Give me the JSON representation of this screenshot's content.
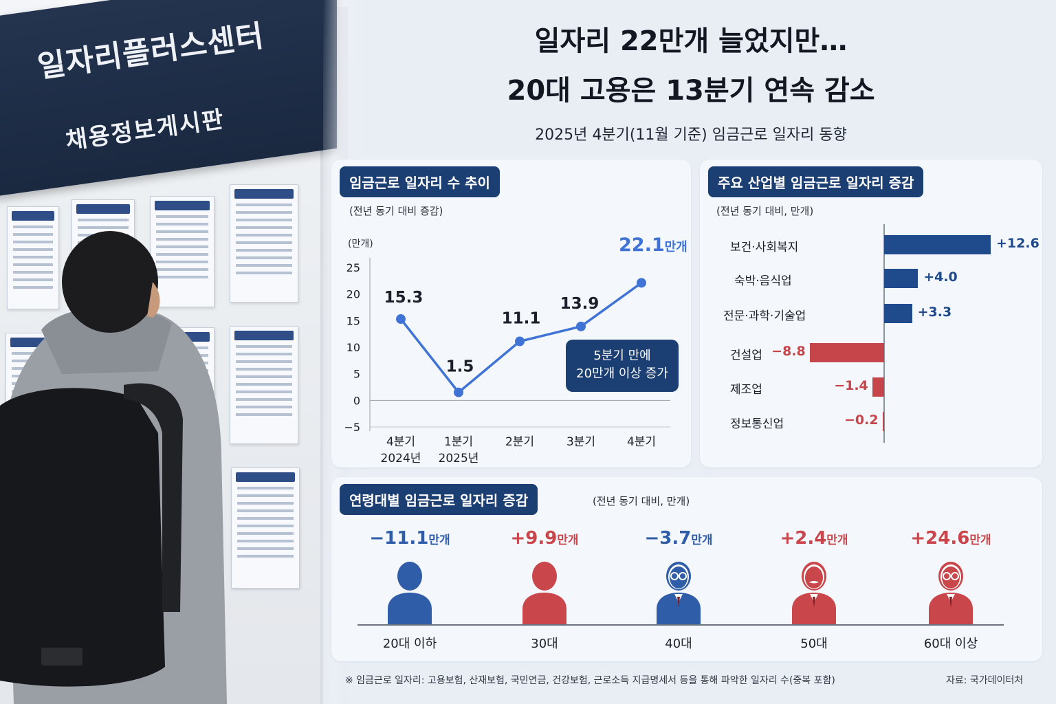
{
  "photo": {
    "sign_line1": "일자리플러스센터",
    "sign_line2": "채용정보게시판"
  },
  "header": {
    "title_line1": "일자리 22만개 늘었지만…",
    "title_line2": "20대 고용은 13분기 연속 감소",
    "subtitle": "2025년 4분기(11월 기준) 임금근로 일자리 동향"
  },
  "line_panel": {
    "title": "임금근로 일자리 수 추이",
    "note": "(전년 동기 대비 증감)",
    "unit": "(만개)",
    "callout_line1": "5분기 만에",
    "callout_line2": "20만개 이상 증가",
    "last_suffix": "만개"
  },
  "industry_panel": {
    "title": "주요 산업별 임금근로 일자리 증감",
    "note": "(전년 동기 대비, 만개)"
  },
  "age_panel": {
    "title": "연령대별 임금근로 일자리 증감",
    "note": "(전년 동기 대비, 만개)",
    "suffix": "만개"
  },
  "colors": {
    "navy": "#1c3f73",
    "line_blue": "#3f74d6",
    "bar_blue": "#1f4a8c",
    "bar_red": "#c6454b",
    "age_blue": "#2f5da8",
    "age_red": "#c9464b"
  },
  "chart_data": [
    {
      "type": "line",
      "title": "임금근로 일자리 수 추이",
      "subtitle": "(전년 동기 대비 증감)",
      "ylabel": "(만개)",
      "x": [
        "4분기\n2024년",
        "1분기\n2025년",
        "2분기",
        "3분기",
        "4분기"
      ],
      "x_line1": [
        "4분기",
        "1분기",
        "2분기",
        "3분기",
        "4분기"
      ],
      "x_line2": [
        "2024년",
        "2025년",
        "",
        "",
        ""
      ],
      "values": [
        15.3,
        1.5,
        11.1,
        13.9,
        22.1
      ],
      "value_labels": [
        "15.3",
        "1.5",
        "11.1",
        "13.9",
        "22.1"
      ],
      "yticks": [
        25,
        20,
        15,
        10,
        5,
        0,
        -5
      ],
      "ytick_labels": [
        "25",
        "20",
        "15",
        "10",
        "5",
        "0",
        "−5"
      ],
      "ylim": [
        -5,
        25
      ],
      "grid": false
    },
    {
      "type": "bar",
      "orientation": "horizontal",
      "title": "주요 산업별 임금근로 일자리 증감",
      "subtitle": "(전년 동기 대비, 만개)",
      "categories": [
        "보건·사회복지",
        "숙박·음식업",
        "전문·과학·기술업",
        "건설업",
        "제조업",
        "정보통신업"
      ],
      "values": [
        12.6,
        4.0,
        3.3,
        -8.8,
        -1.4,
        -0.2
      ],
      "value_labels": [
        "+12.6",
        "+4.0",
        "+3.3",
        "−8.8",
        "−1.4",
        "−0.2"
      ]
    },
    {
      "type": "bar",
      "title": "연령대별 임금근로 일자리 증감",
      "subtitle": "(전년 동기 대비, 만개)",
      "categories": [
        "20대 이하",
        "30대",
        "40대",
        "50대",
        "60대 이상"
      ],
      "values": [
        -11.1,
        9.9,
        -3.7,
        2.4,
        24.6
      ],
      "value_labels": [
        "−11.1",
        "+9.9",
        "−3.7",
        "+2.4",
        "+24.6"
      ],
      "icons": [
        "young-person-icon",
        "person-icon",
        "person-glasses-icon",
        "person-mustache-icon",
        "elderly-person-glasses-icon"
      ]
    }
  ],
  "footer": {
    "note": "※ 임금근로 일자리: 고용보험, 산재보험, 국민연금, 건강보험, 근로소득 지급명세서 등을 통해 파악한 일자리 수(중복 포함)",
    "source": "자료: 국가데이터처"
  }
}
